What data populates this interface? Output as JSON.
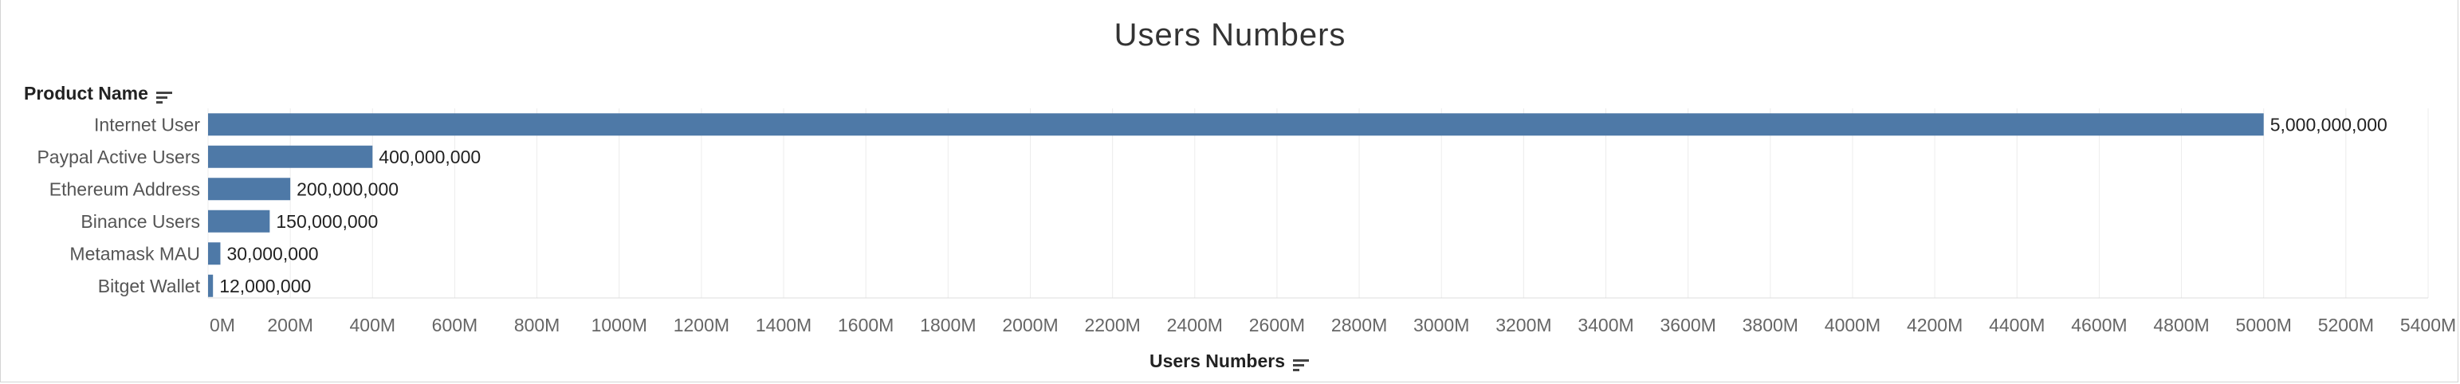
{
  "chart_data": {
    "type": "bar",
    "orientation": "horizontal",
    "title": "Users Numbers",
    "row_header": "Product Name",
    "xlabel": "Users Numbers",
    "categories": [
      "Internet User",
      "Paypal Active Users",
      "Ethereum Address",
      "Binance Users",
      "Metamask MAU",
      "Bitget Wallet"
    ],
    "values": [
      5000000000,
      400000000,
      200000000,
      150000000,
      30000000,
      12000000
    ],
    "value_labels": [
      "5,000,000,000",
      "400,000,000",
      "200,000,000",
      "150,000,000",
      "30,000,000",
      "12,000,000"
    ],
    "xlim": [
      0,
      5400000000
    ],
    "xtick_values": [
      0,
      200000000,
      400000000,
      600000000,
      800000000,
      1000000000,
      1200000000,
      1400000000,
      1600000000,
      1800000000,
      2000000000,
      2200000000,
      2400000000,
      2600000000,
      2800000000,
      3000000000,
      3200000000,
      3400000000,
      3600000000,
      3800000000,
      4000000000,
      4200000000,
      4400000000,
      4600000000,
      4800000000,
      5000000000,
      5200000000,
      5400000000
    ],
    "xtick_labels": [
      "0M",
      "200M",
      "400M",
      "600M",
      "800M",
      "1000M",
      "1200M",
      "1400M",
      "1600M",
      "1800M",
      "2000M",
      "2200M",
      "2400M",
      "2600M",
      "2800M",
      "3000M",
      "3200M",
      "3400M",
      "3600M",
      "3800M",
      "4000M",
      "4200M",
      "4400M",
      "4600M",
      "4800M",
      "5000M",
      "5200M",
      "5400M"
    ],
    "grid": true,
    "bar_color": "#4e79a7"
  }
}
